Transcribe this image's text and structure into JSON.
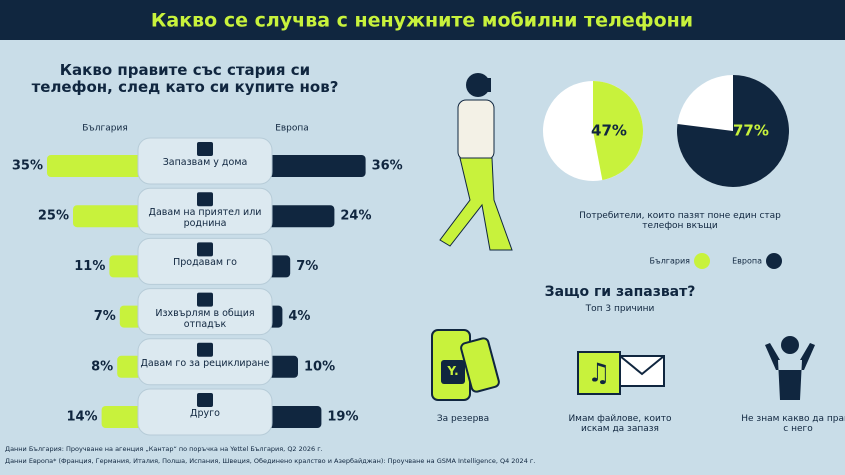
{
  "header": {
    "title": "Какво се случва с ненужните мобилни телефони"
  },
  "chart_data": [
    {
      "type": "bar",
      "title": "Какво правите със стария си телефон, след като си купите нов?",
      "categories": [
        "Запазвам у дома",
        "Давам на приятел или роднина",
        "Продавам го",
        "Изхвърлям в общия отпадък",
        "Давам го за рециклиране",
        "Друго"
      ],
      "series": [
        {
          "name": "България",
          "color": "#c8f23c",
          "values": [
            35,
            25,
            11,
            7,
            8,
            14
          ],
          "value_labels": [
            "35%",
            "25%",
            "11%",
            "7%",
            "8%",
            "14%"
          ]
        },
        {
          "name": "Европа",
          "color": "#10263f",
          "values": [
            36,
            24,
            7,
            4,
            10,
            19
          ],
          "value_labels": [
            "36%",
            "24%",
            "7%",
            "4%",
            "10%",
            "19%"
          ]
        }
      ]
    },
    {
      "type": "pie",
      "caption": "Потребители, които пазят поне един стар телефон вкъщи",
      "series": [
        {
          "name": "България",
          "color": "#c8f23c",
          "values": [
            47
          ],
          "value_labels": [
            "47%"
          ]
        },
        {
          "name": "Европа",
          "color": "#10263f",
          "values": [
            77
          ],
          "value_labels": [
            "77%"
          ]
        }
      ]
    }
  ],
  "reasons": {
    "title": "Защо ги запазват?",
    "subtitle": "Топ 3 причини",
    "logo": "Y.",
    "items": [
      "За резерва",
      "Имам файлове, които искам да запазя",
      "Не знам какво да правя с него"
    ]
  },
  "footnotes": [
    "Данни България: Проучване на агенция „Кантар“ по поръчка на Yettel България, Q2 2026 г.",
    "Данни Европа* (Франция, Германия, Италия, Полша, Испания, Швеция, Обединено кралство и Азербайджан): Проучване на GSMA Intelligence, Q4 2024 г."
  ]
}
